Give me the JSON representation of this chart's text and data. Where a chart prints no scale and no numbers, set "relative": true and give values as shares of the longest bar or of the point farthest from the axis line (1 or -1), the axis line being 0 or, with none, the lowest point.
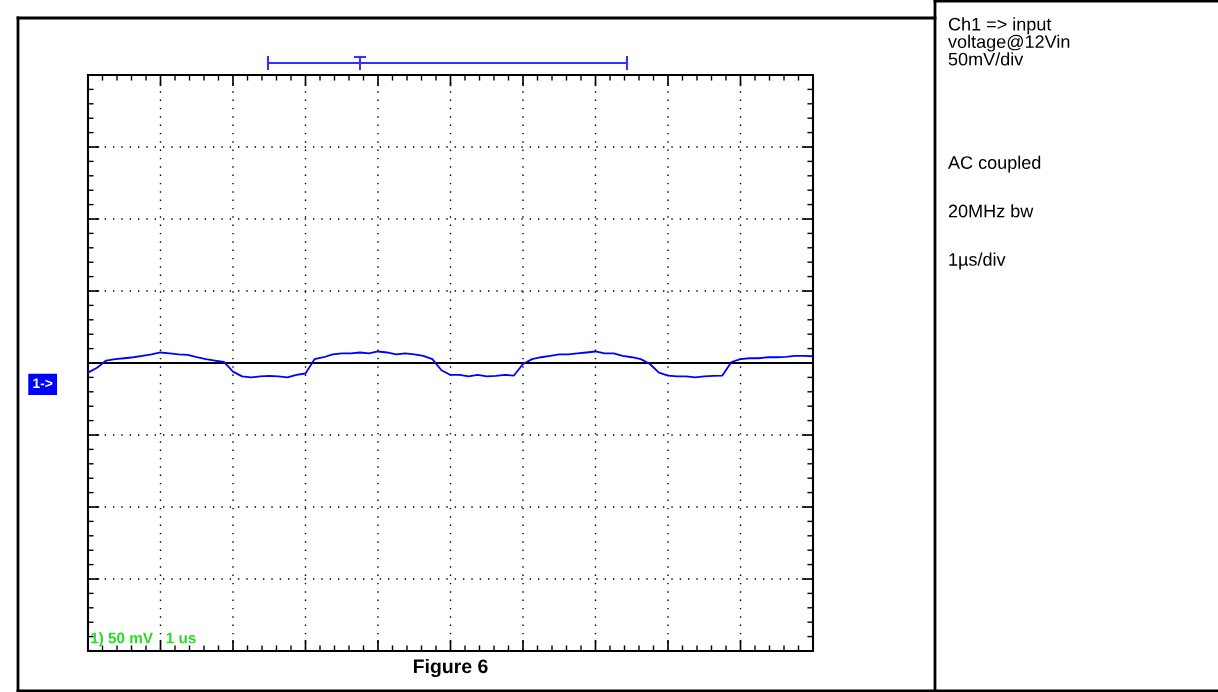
{
  "chart_data": {
    "type": "line",
    "title": "Figure 6",
    "relative": true,
    "grid": true,
    "tick_labels": false,
    "marker": "none",
    "line_style": "solid",
    "categories": [
      null,
      null,
      null,
      null,
      null,
      null,
      null,
      null,
      null,
      null,
      null,
      null,
      null,
      null,
      null,
      null,
      null,
      null,
      null,
      null,
      null,
      null,
      null,
      null,
      null,
      null,
      null,
      null,
      null,
      null,
      null,
      null,
      null,
      null,
      null,
      null,
      null,
      null,
      null,
      null,
      null,
      null,
      null,
      null,
      null,
      null,
      null,
      null,
      null,
      null,
      null,
      null,
      null,
      null,
      null,
      null,
      null,
      null,
      null,
      null,
      null,
      null,
      null,
      null,
      null,
      null,
      null,
      null,
      null,
      null,
      null,
      null,
      null,
      null,
      null,
      null,
      null,
      null,
      null,
      null,
      null
    ],
    "series": [
      {
        "color": "#0000ff",
        "values": [
          -0.67,
          -0.33,
          0.17,
          0.27,
          0.33,
          0.4,
          0.5,
          0.6,
          0.73,
          0.67,
          0.6,
          0.57,
          0.4,
          0.27,
          0.17,
          0.07,
          -0.6,
          -0.93,
          -1,
          -0.93,
          -0.9,
          -0.93,
          -1,
          -0.83,
          -0.73,
          0.27,
          0.4,
          0.6,
          0.67,
          0.67,
          0.73,
          0.67,
          0.8,
          0.73,
          0.6,
          0.67,
          0.6,
          0.5,
          0.27,
          -0.5,
          -0.83,
          -0.83,
          -0.93,
          -0.83,
          -0.93,
          -0.9,
          -0.83,
          -0.87,
          -0.07,
          0.27,
          0.4,
          0.5,
          0.6,
          0.6,
          0.67,
          0.73,
          0.8,
          0.67,
          0.67,
          0.5,
          0.4,
          0.27,
          -0.07,
          -0.67,
          -0.87,
          -0.93,
          -0.93,
          -1,
          -0.93,
          -0.9,
          -0.87,
          0.07,
          0.27,
          0.33,
          0.33,
          0.4,
          0.4,
          0.43,
          0.5,
          0.5,
          0.47
        ]
      }
    ],
    "annotations": [
      "1->",
      "1) 50 mV   1 us",
      "Ch1 => input\nvoltage@12Vin\n50mV/div",
      "AC coupled",
      "20MHz bw",
      "1µs/div"
    ]
  }
}
